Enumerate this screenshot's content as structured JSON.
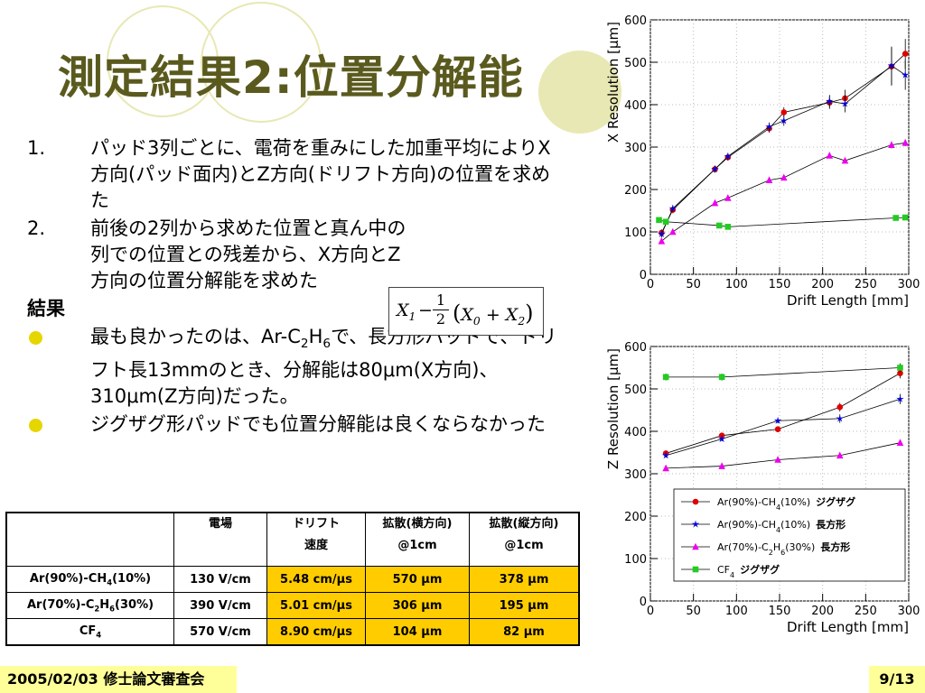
{
  "title": "測定結果2:位置分解能",
  "items": [
    {
      "num": "1.",
      "text": "パッド3列ごとに、電荷を重みにした加重平均によりX方向(パッド面内)とZ方向(ドリフト方向)の位置を求めた"
    },
    {
      "num": "2.",
      "text": "前後の2列から求めた位置と真ん中の列での位置との残差から、X方向とZ方向の位置分解能を求めた"
    }
  ],
  "results_heading": "結果",
  "bullets": [
    {
      "p1": "最も良かったのは、Ar-C",
      "s1": "2",
      "p2": "H",
      "s2": "6",
      "p3": "で、長方形パッドで、ドリフト長13mmのとき、分解能は80μm(X方向)、310μm(Z方向)だった。"
    },
    {
      "p1": "ジグザグ形パッドでも位置分解能は良くならなかった"
    }
  ],
  "formula": {
    "x": "X",
    "one": "1",
    "two": "2",
    "minus": "−",
    "plus": "+",
    "lp": "(",
    "rp": ")",
    "s1": "1",
    "s0": "0",
    "s2": "2"
  },
  "table": {
    "headers": [
      {
        "l1": "",
        "l2": ""
      },
      {
        "l1": "電場",
        "l2": ""
      },
      {
        "l1": "ドリフト",
        "l2": "速度"
      },
      {
        "l1": "拡散(横方向)",
        "l2": "@1cm"
      },
      {
        "l1": "拡散(縦方向)",
        "l2": "@1cm"
      }
    ],
    "rows": [
      {
        "gas_a": "Ar(90%)-CH",
        "gas_s1": "4",
        "gas_b": "(10%)",
        "gas_s2": "",
        "gas_c": "",
        "field": "130 V/cm",
        "speed": "5.48 cm/μs",
        "diff_t": "570 μm",
        "diff_l": "378 μm"
      },
      {
        "gas_a": "Ar(70%)-C",
        "gas_s1": "2",
        "gas_b": "H",
        "gas_s2": "6",
        "gas_c": "(30%)",
        "field": "390 V/cm",
        "speed": "5.01 cm/μs",
        "diff_t": "306 μm",
        "diff_l": "195 μm"
      },
      {
        "gas_a": "CF",
        "gas_s1": "4",
        "gas_b": "",
        "gas_s2": "",
        "gas_c": "",
        "field": "570 V/cm",
        "speed": "8.90 cm/μs",
        "diff_t": "104 μm",
        "diff_l": "82 μm"
      }
    ]
  },
  "footer": {
    "left": "2005/02/03 修士論文審査会",
    "right": "9/13"
  },
  "colors": {
    "title": "#5a5a1e",
    "footer_bg": "#ffff99",
    "highlight": "#ffcc00",
    "bullet": "#e6d600",
    "deco_circle": "#e8e8b4"
  },
  "chart_data": [
    {
      "type": "scatter",
      "xlabel": "Drift Length [mm]",
      "ylabel": "X Resolution [μm]",
      "xlim": [
        0,
        300
      ],
      "ylim": [
        0,
        600
      ],
      "xticks": [
        0,
        50,
        100,
        150,
        200,
        250,
        300
      ],
      "yticks": [
        0,
        100,
        200,
        300,
        400,
        500,
        600
      ],
      "series": [
        {
          "color": "#e00000",
          "x": [
            13,
            26,
            75,
            90,
            138,
            155,
            208,
            226,
            280,
            296
          ],
          "y": [
            98,
            152,
            248,
            276,
            344,
            382,
            405,
            415,
            490,
            520
          ],
          "err": [
            8,
            8,
            8,
            8,
            10,
            12,
            15,
            20,
            45,
            35
          ]
        },
        {
          "color": "#0000dd",
          "x": [
            13,
            26,
            75,
            90,
            138,
            155,
            208,
            226,
            280,
            296
          ],
          "y": [
            95,
            155,
            248,
            278,
            348,
            362,
            408,
            402,
            492,
            470
          ],
          "err": [
            8,
            8,
            8,
            8,
            10,
            12,
            15,
            20,
            45,
            35
          ]
        },
        {
          "color": "#ee00ee",
          "x": [
            13,
            26,
            75,
            90,
            138,
            155,
            208,
            226,
            280,
            296
          ],
          "y": [
            78,
            100,
            168,
            180,
            222,
            228,
            280,
            268,
            305,
            310
          ],
          "err": [
            6,
            6,
            6,
            6,
            6,
            6,
            6,
            6,
            8,
            8
          ]
        },
        {
          "color": "#22cc22",
          "x": [
            10,
            18,
            80,
            90,
            285,
            296
          ],
          "y": [
            128,
            124,
            115,
            112,
            133,
            134
          ],
          "err": [
            4,
            4,
            4,
            4,
            4,
            4
          ]
        }
      ]
    },
    {
      "type": "scatter",
      "xlabel": "Drift Length [mm]",
      "ylabel": "Z Resolution [μm]",
      "xlim": [
        0,
        300
      ],
      "ylim": [
        0,
        600
      ],
      "xticks": [
        0,
        50,
        100,
        150,
        200,
        250,
        300
      ],
      "yticks": [
        0,
        100,
        200,
        300,
        400,
        500,
        600
      ],
      "legend_position": "bottom-right",
      "legend": [
        {
          "a": "Ar(90%)-CH",
          "s1": "4",
          "b": "(10%)",
          "s2": "",
          "c": "",
          "tag": "ジグザグ",
          "color": "#e00000",
          "marker": "circle"
        },
        {
          "a": "Ar(90%)-CH",
          "s1": "4",
          "b": "(10%)",
          "s2": "",
          "c": "",
          "tag": "長方形",
          "color": "#0000dd",
          "marker": "star"
        },
        {
          "a": "Ar(70%)-C",
          "s1": "2",
          "b": "H",
          "s2": "6",
          "c": "(30%)",
          "tag": "長方形",
          "color": "#ee00ee",
          "marker": "triangle"
        },
        {
          "a": "CF",
          "s1": "4",
          "b": "",
          "s2": "",
          "c": "",
          "tag": "ジグザグ",
          "color": "#22cc22",
          "marker": "square"
        }
      ],
      "series": [
        {
          "color": "#e00000",
          "x": [
            18,
            83,
            148,
            220,
            290
          ],
          "y": [
            348,
            390,
            405,
            457,
            537
          ],
          "err": [
            5,
            5,
            6,
            10,
            12
          ]
        },
        {
          "color": "#0000dd",
          "x": [
            18,
            83,
            148,
            220,
            290
          ],
          "y": [
            343,
            382,
            425,
            430,
            476
          ],
          "err": [
            5,
            5,
            6,
            10,
            12
          ]
        },
        {
          "color": "#ee00ee",
          "x": [
            18,
            83,
            148,
            220,
            290
          ],
          "y": [
            313,
            318,
            333,
            343,
            373
          ],
          "err": [
            3,
            3,
            3,
            3,
            3
          ]
        },
        {
          "color": "#22cc22",
          "x": [
            18,
            83,
            290
          ],
          "y": [
            528,
            528,
            550
          ],
          "err": [
            8,
            8,
            10
          ]
        }
      ]
    }
  ]
}
